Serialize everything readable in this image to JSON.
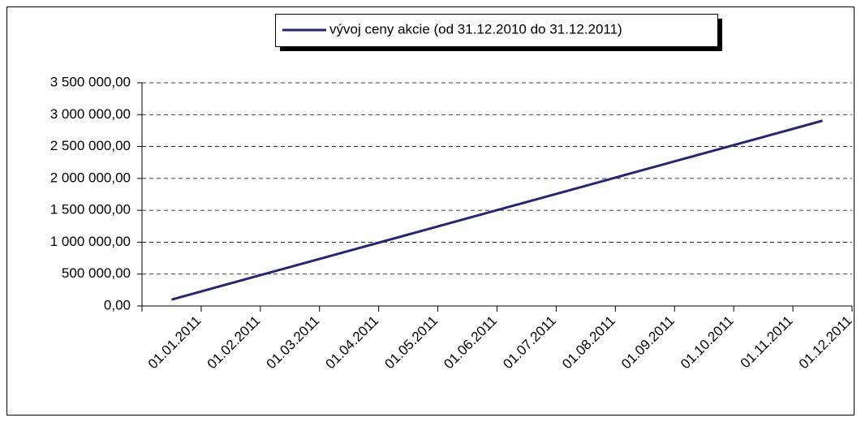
{
  "chart_data": {
    "type": "line",
    "categories": [
      "01.01.2011",
      "01.02.2011",
      "01.03.2011",
      "01.04.2011",
      "01.05.2011",
      "01.06.2011",
      "01.07.2011",
      "01.08.2011",
      "01.09.2011",
      "01.10.2011",
      "01.11.2011",
      "01.12.2011"
    ],
    "series": [
      {
        "name": "vývoj ceny akcie (od 31.12.2010 do 31.12.2011)",
        "color": "#262671",
        "values": [
          100000,
          355000,
          610000,
          865000,
          1120000,
          1375000,
          1630000,
          1885000,
          2140000,
          2395000,
          2650000,
          2905000
        ]
      }
    ],
    "ylim": [
      0,
      3500000
    ],
    "yticks": [
      {
        "value": 0,
        "label": "0,00"
      },
      {
        "value": 500000,
        "label": "500 000,00"
      },
      {
        "value": 1000000,
        "label": "1 000 000,00"
      },
      {
        "value": 1500000,
        "label": "1 500 000,00"
      },
      {
        "value": 2000000,
        "label": "2 000 000,00"
      },
      {
        "value": 2500000,
        "label": "2 500 000,00"
      },
      {
        "value": 3000000,
        "label": "3 000 000,00"
      },
      {
        "value": 3500000,
        "label": "3 500 000,00"
      }
    ],
    "grid": true,
    "legend": "top"
  }
}
